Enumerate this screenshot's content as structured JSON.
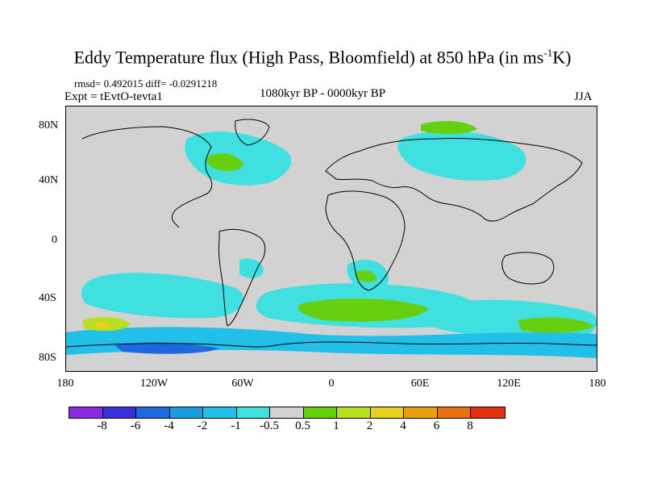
{
  "title": {
    "main": "Eddy Temperature flux (High Pass, Bloomfield) at 850 hPa (in ms",
    "sup": "-1",
    "tail": "K)"
  },
  "stats": "rmsd= 0.492015 diff= -0.0291218",
  "experiment": "Expt = tEvtO-tevta1",
  "period": "1080kyr BP - 0000kyr BP",
  "season": "JJA",
  "lat_ticks": [
    "80N",
    "40N",
    "0",
    "40S",
    "80S"
  ],
  "lon_ticks": [
    "180",
    "120W",
    "60W",
    "0",
    "60E",
    "120E",
    "180"
  ],
  "colorbar": {
    "labels": [
      "-8",
      "-6",
      "-4",
      "-2",
      "-1",
      "-0.5",
      "0.5",
      "1",
      "2",
      "4",
      "6",
      "8"
    ],
    "colors": [
      "#8a2be2",
      "#3a30d8",
      "#1e68e0",
      "#1a9ce0",
      "#22c0e8",
      "#40e0e0",
      "#d2d2d2",
      "#66d010",
      "#b8e020",
      "#e8d020",
      "#e8a010",
      "#e87010",
      "#e03010"
    ]
  },
  "colors": {
    "land": "#d2d2d2",
    "coast": "#000000"
  }
}
